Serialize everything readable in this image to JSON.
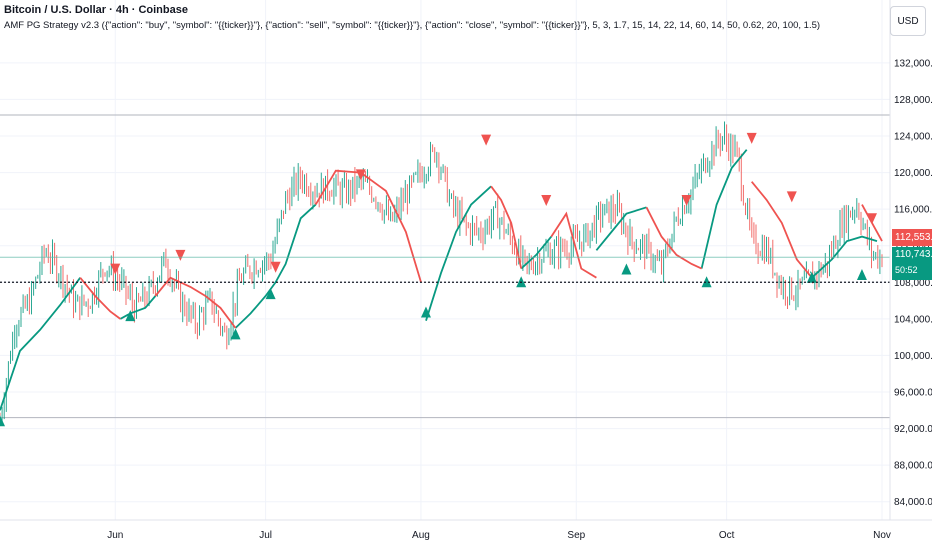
{
  "header": {
    "title": "Bitcoin / U.S. Dollar · 4h · Coinbase",
    "strategy": "AMF PG Strategy v2.3 ({\"action\": \"buy\", \"symbol\": \"{{ticker}}\"}, {\"action\": \"sell\", \"symbol\": \"{{ticker}}\"}, {\"action\": \"close\", \"symbol\": \"{{ticker}}\"}, 5, 3, 1.7, 15, 14, 22, 14, 60, 14, 50, 0.62, 20, 100, 1.5)",
    "currency": "USD"
  },
  "price_labels": {
    "last": "112,553.66",
    "current": "110,743.92",
    "countdown": "50:52"
  },
  "colors": {
    "up": "#089981",
    "down": "#ef5350",
    "grid": "#f0f3fa",
    "axis_text": "#131722"
  },
  "chart_data": {
    "type": "line",
    "title": "Bitcoin / U.S. Dollar · 4h · Coinbase",
    "xlabel": "",
    "ylabel": "",
    "x_ticks": [
      "Jun",
      "Jul",
      "Aug",
      "Sep",
      "Oct",
      "Nov"
    ],
    "x_tick_days": [
      23,
      53,
      84,
      115,
      145,
      176
    ],
    "y_ticks": [
      "84,000.00",
      "88,000.00",
      "92,000.00",
      "96,000.00",
      "100,000.00",
      "104,000.00",
      "108,000.00",
      "112,000.00",
      "116,000.00",
      "120,000.00",
      "124,000.00",
      "128,000.00",
      "132,000.00"
    ],
    "ylim": [
      82000,
      134500
    ],
    "xlim_days": [
      0,
      176
    ],
    "reference_lines": [
      126300,
      93200
    ],
    "current_price": 110743.92,
    "last_close": 112553.66,
    "grid": true,
    "series": [
      {
        "name": "Price",
        "x": [
          0,
          3,
          6,
          9,
          12,
          15,
          18,
          21,
          24,
          27,
          30,
          33,
          36,
          39,
          42,
          45,
          48,
          51,
          54,
          57,
          60,
          63,
          66,
          69,
          72,
          75,
          78,
          81,
          84,
          87,
          90,
          93,
          96,
          99,
          102,
          105,
          108,
          111,
          114,
          117,
          120,
          123,
          126,
          129,
          132,
          135,
          138,
          141,
          144,
          147,
          150,
          153,
          156,
          159,
          162,
          165,
          168,
          171,
          174,
          176
        ],
        "values": [
          93000,
          103500,
          106000,
          111500,
          109000,
          105500,
          106000,
          110000,
          108000,
          105200,
          107000,
          110500,
          106000,
          103500,
          106000,
          102000,
          108500,
          110000,
          110500,
          117000,
          119500,
          118000,
          118500,
          117800,
          119000,
          117500,
          114500,
          117500,
          120000,
          122500,
          116500,
          114000,
          113500,
          115500,
          112500,
          109500,
          111000,
          111500,
          112000,
          113000,
          115500,
          116000,
          112500,
          111500,
          109500,
          115000,
          118000,
          121500,
          124000,
          122000,
          112500,
          111500,
          107500,
          107000,
          108500,
          110000,
          114500,
          116500,
          111000,
          110743.92
        ]
      },
      {
        "name": "Up trail",
        "segments": [
          {
            "x": [
              0,
              4,
              8,
              12,
              14,
              16
            ],
            "values": [
              94000,
              100500,
              102800,
              105500,
              107000,
              108500
            ]
          },
          {
            "x": [
              24,
              26,
              29,
              31
            ],
            "values": [
              104000,
              104600,
              105200,
              106500
            ]
          },
          {
            "x": [
              47,
              50,
              53,
              55,
              57,
              60,
              63
            ],
            "values": [
              103000,
              104600,
              106500,
              108000,
              110000,
              115000,
              116500
            ]
          },
          {
            "x": [
              85,
              88,
              91,
              94,
              98
            ],
            "values": [
              103800,
              109000,
              113500,
              116500,
              118500
            ]
          },
          {
            "x": [
              104,
              107,
              110
            ],
            "values": [
              109500,
              111000,
              113000
            ]
          },
          {
            "x": [
              119,
              122,
              125,
              129
            ],
            "values": [
              111500,
              113500,
              115500,
              116200
            ]
          },
          {
            "x": [
              140,
              143,
              146,
              149
            ],
            "values": [
              109500,
              116500,
              120500,
              122500
            ]
          },
          {
            "x": [
              162,
              166,
              169,
              172,
              175
            ],
            "values": [
              108500,
              110500,
              112500,
              113000,
              112500
            ]
          }
        ]
      },
      {
        "name": "Down trail",
        "segments": [
          {
            "x": [
              16,
              19,
              22,
              24
            ],
            "values": [
              108500,
              106500,
              104800,
              104000
            ]
          },
          {
            "x": [
              31,
              34,
              38,
              41,
              44,
              47
            ],
            "values": [
              106500,
              108500,
              107500,
              106500,
              105200,
              103000
            ]
          },
          {
            "x": [
              63,
              67,
              72,
              77,
              81,
              84
            ],
            "values": [
              116500,
              120200,
              120000,
              118000,
              113500,
              108000
            ]
          },
          {
            "x": [
              98,
              100,
              102,
              104
            ],
            "values": [
              118500,
              117000,
              114500,
              109500
            ]
          },
          {
            "x": [
              110,
              113,
              116,
              119
            ],
            "values": [
              113000,
              115500,
              109500,
              108500
            ]
          },
          {
            "x": [
              129,
              132,
              135,
              138,
              140
            ],
            "values": [
              116200,
              113000,
              111000,
              110000,
              109500
            ]
          },
          {
            "x": [
              150,
              153,
              156,
              159,
              162
            ],
            "values": [
              119000,
              117000,
              114500,
              110500,
              108500
            ]
          },
          {
            "x": [
              172,
              174,
              176
            ],
            "values": [
              116500,
              114500,
              112500
            ]
          }
        ]
      },
      {
        "name": "Buy signals",
        "x": [
          0,
          26,
          47,
          54,
          85,
          104,
          125,
          141,
          162,
          172
        ],
        "values": [
          92800,
          104300,
          102300,
          106700,
          104700,
          108000,
          109400,
          108000,
          108500,
          108800
        ]
      },
      {
        "name": "Sell signals",
        "x": [
          23,
          36,
          55,
          72,
          97,
          109,
          137,
          150,
          158,
          174
        ],
        "values": [
          109500,
          111000,
          109700,
          119800,
          123600,
          117000,
          117000,
          123800,
          117400,
          115000
        ]
      }
    ]
  }
}
